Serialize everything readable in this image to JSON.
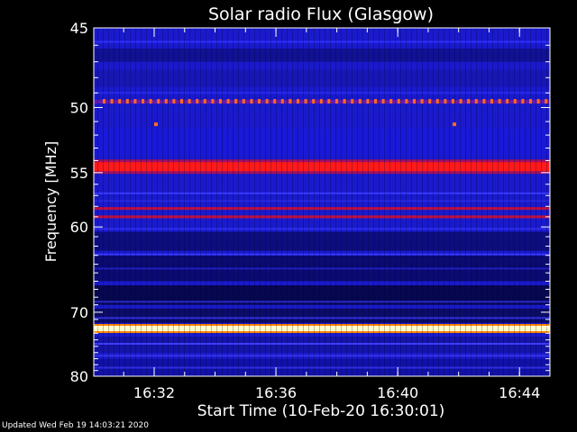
{
  "chart_data": {
    "type": "heatmap",
    "title": "Solar radio Flux (Glasgow)",
    "xlabel": "Start Time (10-Feb-20 16:30:01)",
    "ylabel": "Frequency [MHz]",
    "x_ticks": [
      "16:32",
      "16:36",
      "16:40",
      "16:44"
    ],
    "y_ticks": [
      "45",
      "50",
      "55",
      "60",
      "70",
      "80"
    ],
    "x_range": [
      "16:30:01",
      "16:45:00"
    ],
    "y_range": [
      45,
      80
    ],
    "y_scale": "reciprocal",
    "colormap": [
      "#000020",
      "#101080",
      "#2020d0",
      "#ff0000",
      "#ffff80",
      "#ffffff"
    ],
    "bright_bands": [
      {
        "freq_mhz": 49.6,
        "intensity": "periodic-spikes"
      },
      {
        "freq_mhz": 54.5,
        "intensity": "high"
      },
      {
        "freq_mhz": 58.2,
        "intensity": "medium"
      },
      {
        "freq_mhz": 59.0,
        "intensity": "medium"
      },
      {
        "freq_mhz": 72.3,
        "intensity": "saturated"
      }
    ]
  },
  "footer": {
    "updated": "Updated Wed Feb 19 14:03:21 2020"
  }
}
